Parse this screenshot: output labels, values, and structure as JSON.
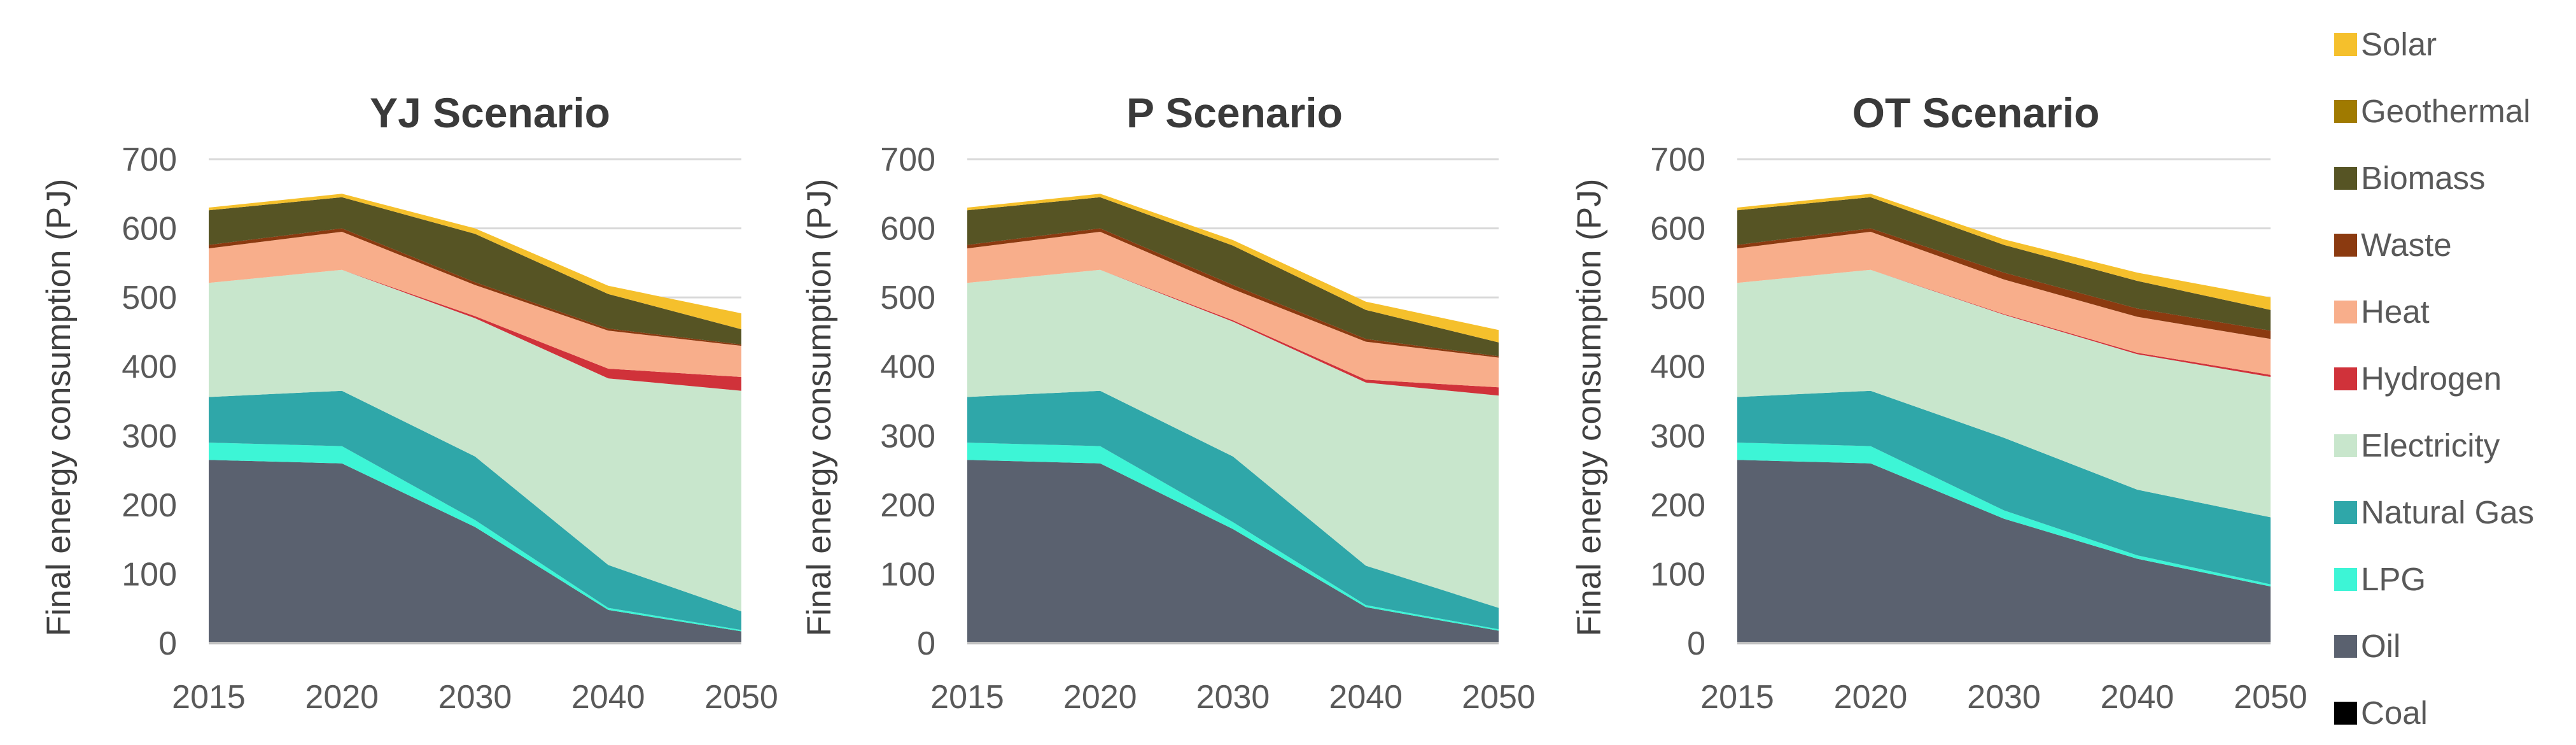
{
  "chart_data": {
    "type": "area",
    "stacked": true,
    "ylabel": "Final energy consumption (PJ)",
    "ylim": [
      0,
      700
    ],
    "yticks": [
      "0",
      "100",
      "200",
      "300",
      "400",
      "500",
      "600",
      "700"
    ],
    "categories": [
      "2015",
      "2020",
      "2030",
      "2040",
      "2050"
    ],
    "legend": [
      {
        "name": "Solar",
        "color": "#f5c02c"
      },
      {
        "name": "Geothermal",
        "color": "#a07a00"
      },
      {
        "name": "Biomass",
        "color": "#565424"
      },
      {
        "name": "Waste",
        "color": "#8b3a10"
      },
      {
        "name": "Heat",
        "color": "#f8ae8b"
      },
      {
        "name": "Hydrogen",
        "color": "#d0323a"
      },
      {
        "name": "Electricity",
        "color": "#c8e6cc"
      },
      {
        "name": "Natural Gas",
        "color": "#2fa7a9"
      },
      {
        "name": "LPG",
        "color": "#3df5d6"
      },
      {
        "name": "Oil",
        "color": "#5a616f"
      },
      {
        "name": "Coal",
        "color": "#000000"
      }
    ],
    "charts": [
      {
        "title": "YJ Scenario",
        "series": [
          {
            "name": "Coal",
            "values": [
              0,
              0,
              0,
              0,
              0
            ]
          },
          {
            "name": "Oil",
            "values": [
              265,
              260,
              168,
              48,
              17
            ]
          },
          {
            "name": "LPG",
            "values": [
              25,
              25,
              10,
              3,
              2
            ]
          },
          {
            "name": "Natural Gas",
            "values": [
              66,
              80,
              92,
              62,
              27
            ]
          },
          {
            "name": "Electricity",
            "values": [
              165,
              175,
              200,
              270,
              319
            ]
          },
          {
            "name": "Hydrogen",
            "values": [
              0,
              0,
              3,
              14,
              20
            ]
          },
          {
            "name": "Heat",
            "values": [
              50,
              55,
              45,
              55,
              45
            ]
          },
          {
            "name": "Waste",
            "values": [
              5,
              5,
              4,
              3,
              2
            ]
          },
          {
            "name": "Biomass",
            "values": [
              50,
              45,
              70,
              50,
              22
            ]
          },
          {
            "name": "Geothermal",
            "values": [
              0,
              0,
              0,
              0,
              0
            ]
          },
          {
            "name": "Solar",
            "values": [
              4,
              5,
              8,
              12,
              23
            ]
          }
        ]
      },
      {
        "title": "P Scenario",
        "series": [
          {
            "name": "Coal",
            "values": [
              0,
              0,
              0,
              0,
              0
            ]
          },
          {
            "name": "Oil",
            "values": [
              265,
              260,
              165,
              52,
              18
            ]
          },
          {
            "name": "LPG",
            "values": [
              25,
              25,
              10,
              3,
              2
            ]
          },
          {
            "name": "Natural Gas",
            "values": [
              66,
              80,
              95,
              57,
              31
            ]
          },
          {
            "name": "Electricity",
            "values": [
              165,
              175,
              195,
              265,
              307
            ]
          },
          {
            "name": "Hydrogen",
            "values": [
              0,
              0,
              2,
              4,
              12
            ]
          },
          {
            "name": "Heat",
            "values": [
              50,
              55,
              45,
              55,
              43
            ]
          },
          {
            "name": "Waste",
            "values": [
              5,
              5,
              6,
              4,
              2
            ]
          },
          {
            "name": "Biomass",
            "values": [
              50,
              45,
              57,
              42,
              20
            ]
          },
          {
            "name": "Geothermal",
            "values": [
              0,
              0,
              0,
              0,
              0
            ]
          },
          {
            "name": "Solar",
            "values": [
              4,
              5,
              8,
              12,
              18
            ]
          }
        ]
      },
      {
        "title": "OT Scenario",
        "series": [
          {
            "name": "Coal",
            "values": [
              0,
              0,
              0,
              0,
              0
            ]
          },
          {
            "name": "Oil",
            "values": [
              265,
              260,
              180,
              122,
              82
            ]
          },
          {
            "name": "LPG",
            "values": [
              25,
              25,
              12,
              5,
              3
            ]
          },
          {
            "name": "Natural Gas",
            "values": [
              66,
              80,
              105,
              95,
              97
            ]
          },
          {
            "name": "Electricity",
            "values": [
              165,
              175,
              178,
              196,
              203
            ]
          },
          {
            "name": "Hydrogen",
            "values": [
              0,
              0,
              1,
              2,
              3
            ]
          },
          {
            "name": "Heat",
            "values": [
              50,
              55,
              50,
              52,
              52
            ]
          },
          {
            "name": "Waste",
            "values": [
              5,
              5,
              10,
              12,
              12
            ]
          },
          {
            "name": "Biomass",
            "values": [
              50,
              45,
              40,
              40,
              30
            ]
          },
          {
            "name": "Geothermal",
            "values": [
              0,
              0,
              0,
              0,
              0
            ]
          },
          {
            "name": "Solar",
            "values": [
              4,
              5,
              8,
              12,
              18
            ]
          }
        ]
      }
    ]
  }
}
